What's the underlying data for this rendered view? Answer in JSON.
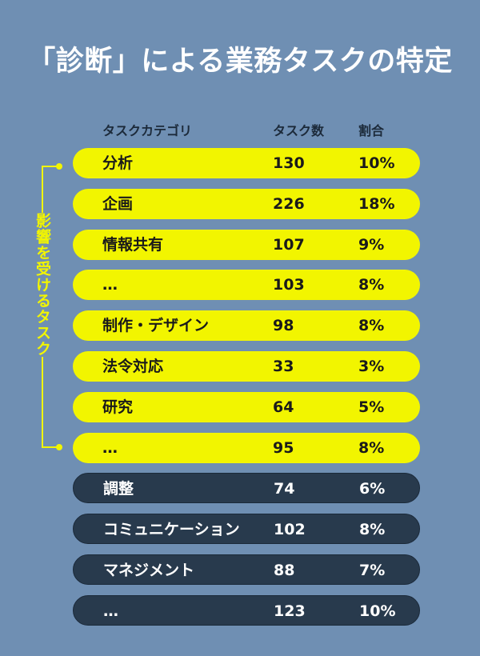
{
  "title": "「診断」による業務タスクの特定",
  "side_label": "影響を受けるタスク",
  "colors": {
    "background": "#6f8fb3",
    "highlight": "#f2f500",
    "dark": "#283a4d"
  },
  "chart_data": {
    "type": "table",
    "columns": [
      "タスクカテゴリ",
      "タスク数",
      "割合"
    ],
    "rows": [
      {
        "category": "分析",
        "count": "130",
        "share": "10%",
        "affected": true
      },
      {
        "category": "企画",
        "count": "226",
        "share": "18%",
        "affected": true
      },
      {
        "category": "情報共有",
        "count": "107",
        "share": "9%",
        "affected": true
      },
      {
        "category": "…",
        "count": "103",
        "share": "8%",
        "affected": true
      },
      {
        "category": "制作・デザイン",
        "count": "98",
        "share": "8%",
        "affected": true
      },
      {
        "category": "法令対応",
        "count": "33",
        "share": "3%",
        "affected": true
      },
      {
        "category": "研究",
        "count": "64",
        "share": "5%",
        "affected": true
      },
      {
        "category": "…",
        "count": "95",
        "share": "8%",
        "affected": true
      },
      {
        "category": "調整",
        "count": "74",
        "share": "6%",
        "affected": false
      },
      {
        "category": "コミュニケーション",
        "count": "102",
        "share": "8%",
        "affected": false
      },
      {
        "category": "マネジメント",
        "count": "88",
        "share": "7%",
        "affected": false
      },
      {
        "category": "…",
        "count": "123",
        "share": "10%",
        "affected": false
      }
    ]
  }
}
